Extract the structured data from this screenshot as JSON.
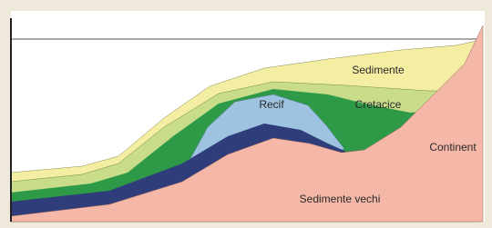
{
  "labels": [
    "Sedimente",
    "Cretacice",
    "Recif",
    "Continent",
    "Sedimente vechi"
  ]
}
